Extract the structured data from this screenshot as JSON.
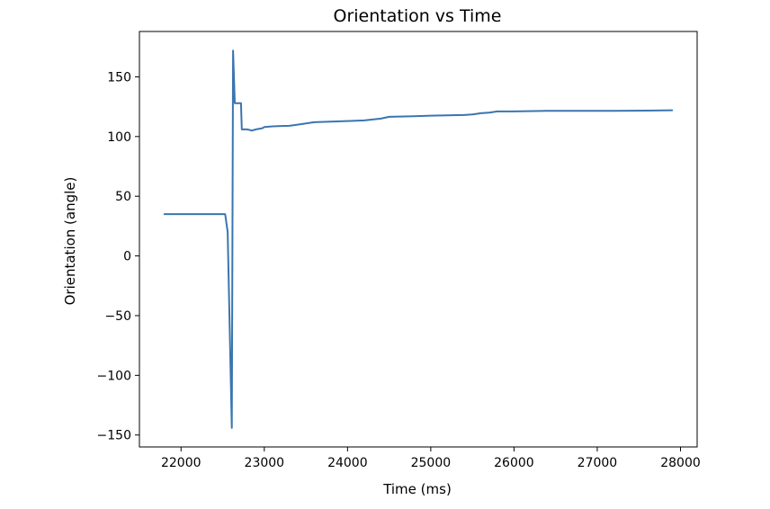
{
  "chart_data": {
    "type": "line",
    "title": "Orientation vs Time",
    "xlabel": "Time (ms)",
    "ylabel": "Orientation (angle)",
    "xlim": [
      21500,
      28200
    ],
    "ylim": [
      -160,
      188
    ],
    "grid": false,
    "legend": "none",
    "colors": {
      "series": "#3a75b0",
      "axes": "#000000",
      "background": "#ffffff"
    },
    "x_ticks": [
      22000,
      23000,
      24000,
      25000,
      26000,
      27000,
      28000
    ],
    "x_tick_labels": [
      "22000",
      "23000",
      "24000",
      "25000",
      "26000",
      "27000",
      "28000"
    ],
    "y_ticks": [
      150,
      100,
      50,
      0,
      -50,
      -100,
      -150
    ],
    "y_tick_labels": [
      "150",
      "100",
      "50",
      "0",
      "−50",
      "−100",
      "−150"
    ],
    "series": [
      {
        "x": [
          21800,
          22000,
          22200,
          22400,
          22530,
          22560,
          22610,
          22625,
          22645,
          22660,
          22720,
          22730,
          22800,
          22850,
          22900,
          22980,
          23000,
          23100,
          23200,
          23300,
          23400,
          23500,
          23600,
          23800,
          24000,
          24200,
          24400,
          24500,
          24800,
          25000,
          25200,
          25400,
          25500,
          25550,
          25600,
          25700,
          25800,
          26000,
          26400,
          26800,
          27200,
          27600,
          27900
        ],
        "y": [
          35,
          35,
          35,
          35,
          35,
          20,
          -144,
          172,
          128,
          128,
          128,
          106,
          106,
          105,
          106,
          107,
          108,
          108.5,
          108.8,
          109,
          110,
          111,
          112,
          112.5,
          113,
          113.5,
          115,
          116.5,
          117,
          117.5,
          117.8,
          118,
          118.5,
          119,
          119.5,
          120,
          121,
          121,
          121.5,
          121.5,
          121.5,
          121.7,
          122
        ]
      }
    ]
  }
}
